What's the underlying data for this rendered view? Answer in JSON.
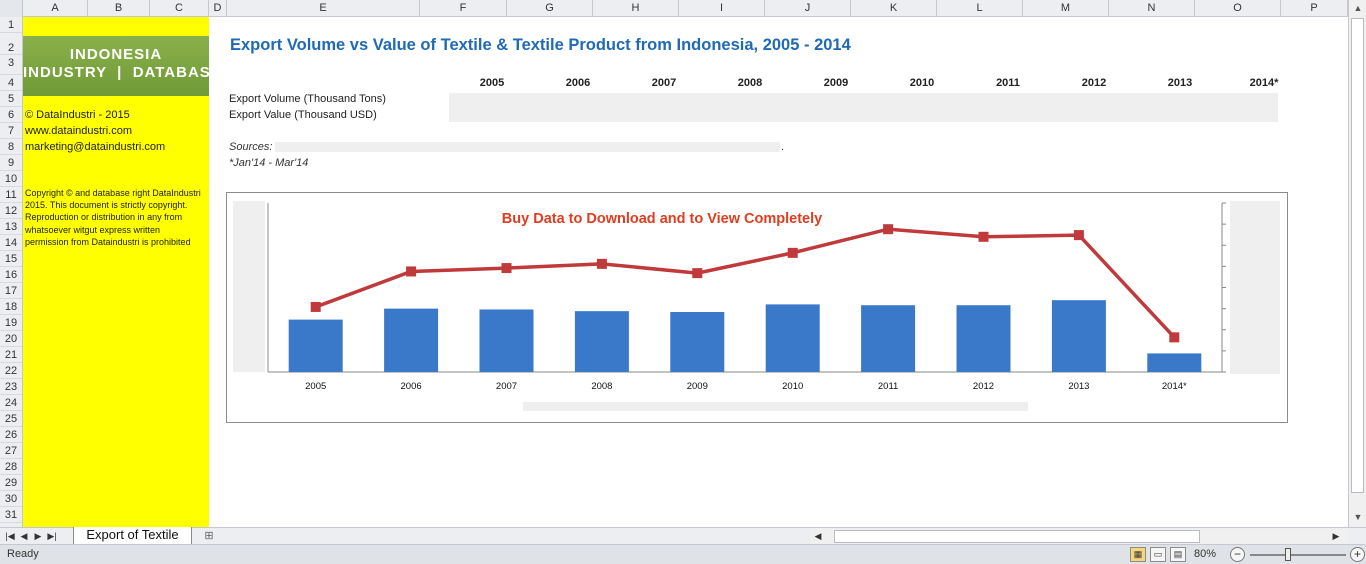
{
  "columns": [
    "A",
    "B",
    "C",
    "D",
    "E",
    "F",
    "G",
    "H",
    "I",
    "J",
    "K",
    "L",
    "M",
    "N",
    "O",
    "P"
  ],
  "rows": [
    "1",
    "2",
    "3",
    "4",
    "5",
    "6",
    "7",
    "8",
    "9",
    "10",
    "11",
    "12",
    "13",
    "14",
    "15",
    "16",
    "17",
    "18",
    "19",
    "20",
    "21",
    "22",
    "23",
    "24",
    "25",
    "26",
    "27",
    "28",
    "29",
    "30",
    "31"
  ],
  "sidebar": {
    "logo_line1": "INDONESIA",
    "logo_line2": "INDUSTRY  |  DATABASE",
    "credit": "© DataIndustri - 2015",
    "website": "www.dataindustri.com",
    "email": "marketing@dataindustri.com",
    "copyright": "Copyright © and database right DataIndustri 2015. This document is strictly copyright. Reproduction or distribution in any from whatsoever witgut express written permission from Dataindustri is prohibited"
  },
  "sheet": {
    "title": "Export Volume vs Value of Textile & Textile Product from Indonesia, 2005 - 2014",
    "years": [
      "2005",
      "2006",
      "2007",
      "2008",
      "2009",
      "2010",
      "2011",
      "2012",
      "2013",
      "2014*"
    ],
    "row_volume": "Export Volume (Thousand Tons)",
    "row_value": "Export Value (Thousand USD)",
    "sources_label": "Sources:",
    "sources_end": ".",
    "note": "*Jan'14 - Mar'14"
  },
  "chart_data": {
    "type": "bar",
    "title": "Buy Data to Download and to View  Completely",
    "categories": [
      "2005",
      "2006",
      "2007",
      "2008",
      "2009",
      "2010",
      "2011",
      "2012",
      "2013",
      "2014*"
    ],
    "series": [
      {
        "type": "bar",
        "values": [
          0.31,
          0.375,
          0.37,
          0.36,
          0.355,
          0.4,
          0.395,
          0.395,
          0.425,
          0.11
        ]
      },
      {
        "type": "line",
        "values": [
          0.385,
          0.595,
          0.615,
          0.64,
          0.585,
          0.705,
          0.845,
          0.8,
          0.81,
          0.205
        ]
      }
    ],
    "ylim": [
      0,
      1
    ],
    "grid": false,
    "colors": {
      "bar": "#3a78c9",
      "line": "#c0393b",
      "title": "#e03c1f"
    }
  },
  "tabs": [
    {
      "label": "Export of Textile"
    }
  ],
  "status": {
    "ready": "Ready",
    "zoom": "80%"
  }
}
